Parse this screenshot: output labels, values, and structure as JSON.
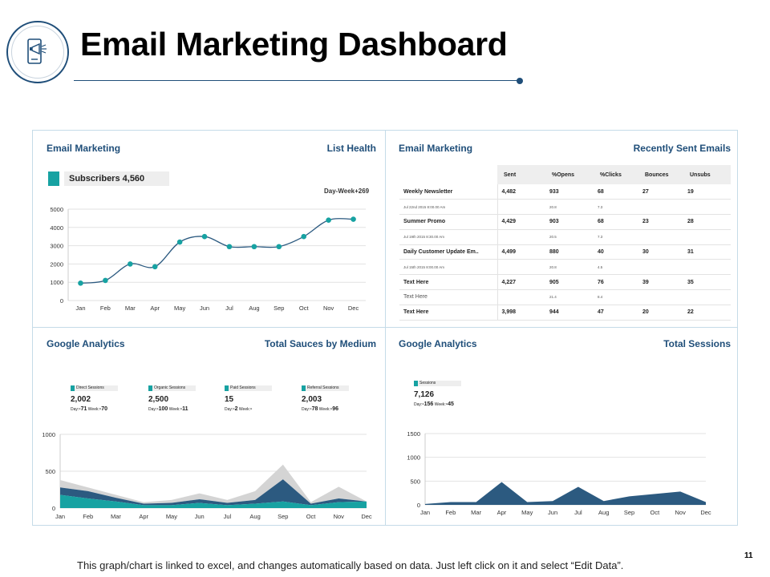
{
  "header": {
    "title": "Email Marketing Dashboard",
    "icon": "megaphone-phone-icon",
    "accent": "#1f4e79"
  },
  "panels": {
    "top_left": {
      "left_title": "Email Marketing",
      "right_title": "List Health",
      "subscribers_label": "Subscribers 4,560",
      "day_week_label": "Day-Week+269"
    },
    "top_right": {
      "left_title": "Email Marketing",
      "right_title": "Recently Sent Emails"
    },
    "bottom_left": {
      "left_title": "Google Analytics",
      "right_title": "Total Sauces by Medium",
      "tiles": [
        {
          "label": "Direct Sessions",
          "value": "2,002",
          "day_label": "Day:",
          "day": "-71",
          "week_label": "Week:",
          "week": "-70"
        },
        {
          "label": "Organic Sessions",
          "value": "2,500",
          "day_label": "Day:",
          "day": "-100",
          "week_label": "Week:",
          "week": "-11"
        },
        {
          "label": "Paid Sessions",
          "value": "15",
          "day_label": "Day:",
          "day": "-2",
          "week_label": "Week:",
          "week": "-"
        },
        {
          "label": "Referral Sessions",
          "value": "2,003",
          "day_label": "Day:",
          "day": "-78",
          "week_label": "Week:",
          "week": "-96"
        }
      ]
    },
    "bottom_right": {
      "left_title": "Google Analytics",
      "right_title": "Total Sessions",
      "tile": {
        "label": "Sessions",
        "value": "7,126",
        "day_label": "Day:",
        "day": "-156",
        "week_label": "Week:",
        "week": "-45"
      }
    }
  },
  "email_table": {
    "columns": [
      "Sent",
      "%Opens",
      "%Clicks",
      "Bounces",
      "Unsubs"
    ],
    "rows": [
      {
        "name": "Weekly Newsletter",
        "values": [
          "4,482",
          "933",
          "68",
          "27",
          "19"
        ],
        "date": "Jul 22nd 2015 8:00.00 Am",
        "rates": [
          "20.8",
          "7.3"
        ]
      },
      {
        "name": "Summer Promo",
        "values": [
          "4,429",
          "903",
          "68",
          "23",
          "28"
        ],
        "date": "Jul 19th 2015 8:30.00 Am",
        "rates": [
          "20.5",
          "7.3"
        ]
      },
      {
        "name": "Daily Customer Update Em..",
        "values": [
          "4,499",
          "880",
          "40",
          "30",
          "31"
        ],
        "date": "Jul 15th 2015 8:00.00 Am",
        "rates": [
          "20.8",
          "4.5"
        ]
      },
      {
        "name": "Text Here",
        "values": [
          "4,227",
          "905",
          "76",
          "39",
          "35"
        ],
        "date": "Text Here",
        "rates": [
          "21.4",
          "8.4"
        ]
      },
      {
        "name": "Text Here",
        "values": [
          "3,998",
          "944",
          "47",
          "20",
          "22"
        ]
      }
    ]
  },
  "footer": {
    "note": "This graph/chart is linked to excel, and changes automatically based on data. Just left click on it and select “Edit Data”.",
    "page_number": "11"
  },
  "colors": {
    "teal": "#17a2a2",
    "navy": "#2c5a80",
    "gray": "#d4d4d4",
    "panel_title": "#1f4e79"
  },
  "chart_data": [
    {
      "id": "list-health",
      "type": "line",
      "categories": [
        "Jan",
        "Feb",
        "Mar",
        "Apr",
        "May",
        "Jun",
        "Jul",
        "Aug",
        "Sep",
        "Oct",
        "Nov",
        "Dec"
      ],
      "series": [
        {
          "name": "Subscribers",
          "values": [
            950,
            1100,
            2000,
            1850,
            3200,
            3500,
            2950,
            2950,
            2950,
            3500,
            4400,
            4450
          ]
        }
      ],
      "yticks": [
        0,
        1000,
        2000,
        3000,
        4000,
        5000
      ],
      "ylim": [
        0,
        5000
      ],
      "grid": true
    },
    {
      "id": "sessions-by-medium",
      "type": "area",
      "categories": [
        "Jan",
        "Feb",
        "Mar",
        "Apr",
        "May",
        "Jun",
        "Jul",
        "Aug",
        "Sep",
        "Oct",
        "Nov",
        "Dec"
      ],
      "series": [
        {
          "name": "Direct Sessions",
          "values": [
            180,
            130,
            90,
            40,
            40,
            70,
            40,
            60,
            90,
            40,
            80,
            90
          ]
        },
        {
          "name": "Organic Sessions",
          "values": [
            100,
            100,
            50,
            20,
            30,
            50,
            30,
            50,
            300,
            20,
            50,
            0
          ]
        },
        {
          "name": "Referral Sessions",
          "values": [
            100,
            50,
            40,
            20,
            40,
            80,
            40,
            120,
            200,
            20,
            160,
            0
          ]
        }
      ],
      "yticks": [
        0,
        500,
        1000
      ],
      "ylim": [
        0,
        1000
      ],
      "grid": true
    },
    {
      "id": "total-sessions",
      "type": "area",
      "categories": [
        "Jan",
        "Feb",
        "Mar",
        "Apr",
        "May",
        "Jun",
        "Jul",
        "Aug",
        "Sep",
        "Oct",
        "Nov",
        "Dec"
      ],
      "series": [
        {
          "name": "Sessions",
          "values": [
            20,
            60,
            60,
            480,
            60,
            80,
            380,
            80,
            180,
            230,
            280,
            60
          ]
        }
      ],
      "yticks": [
        0,
        500,
        1000,
        1500
      ],
      "ylim": [
        0,
        1500
      ],
      "grid": true
    }
  ]
}
